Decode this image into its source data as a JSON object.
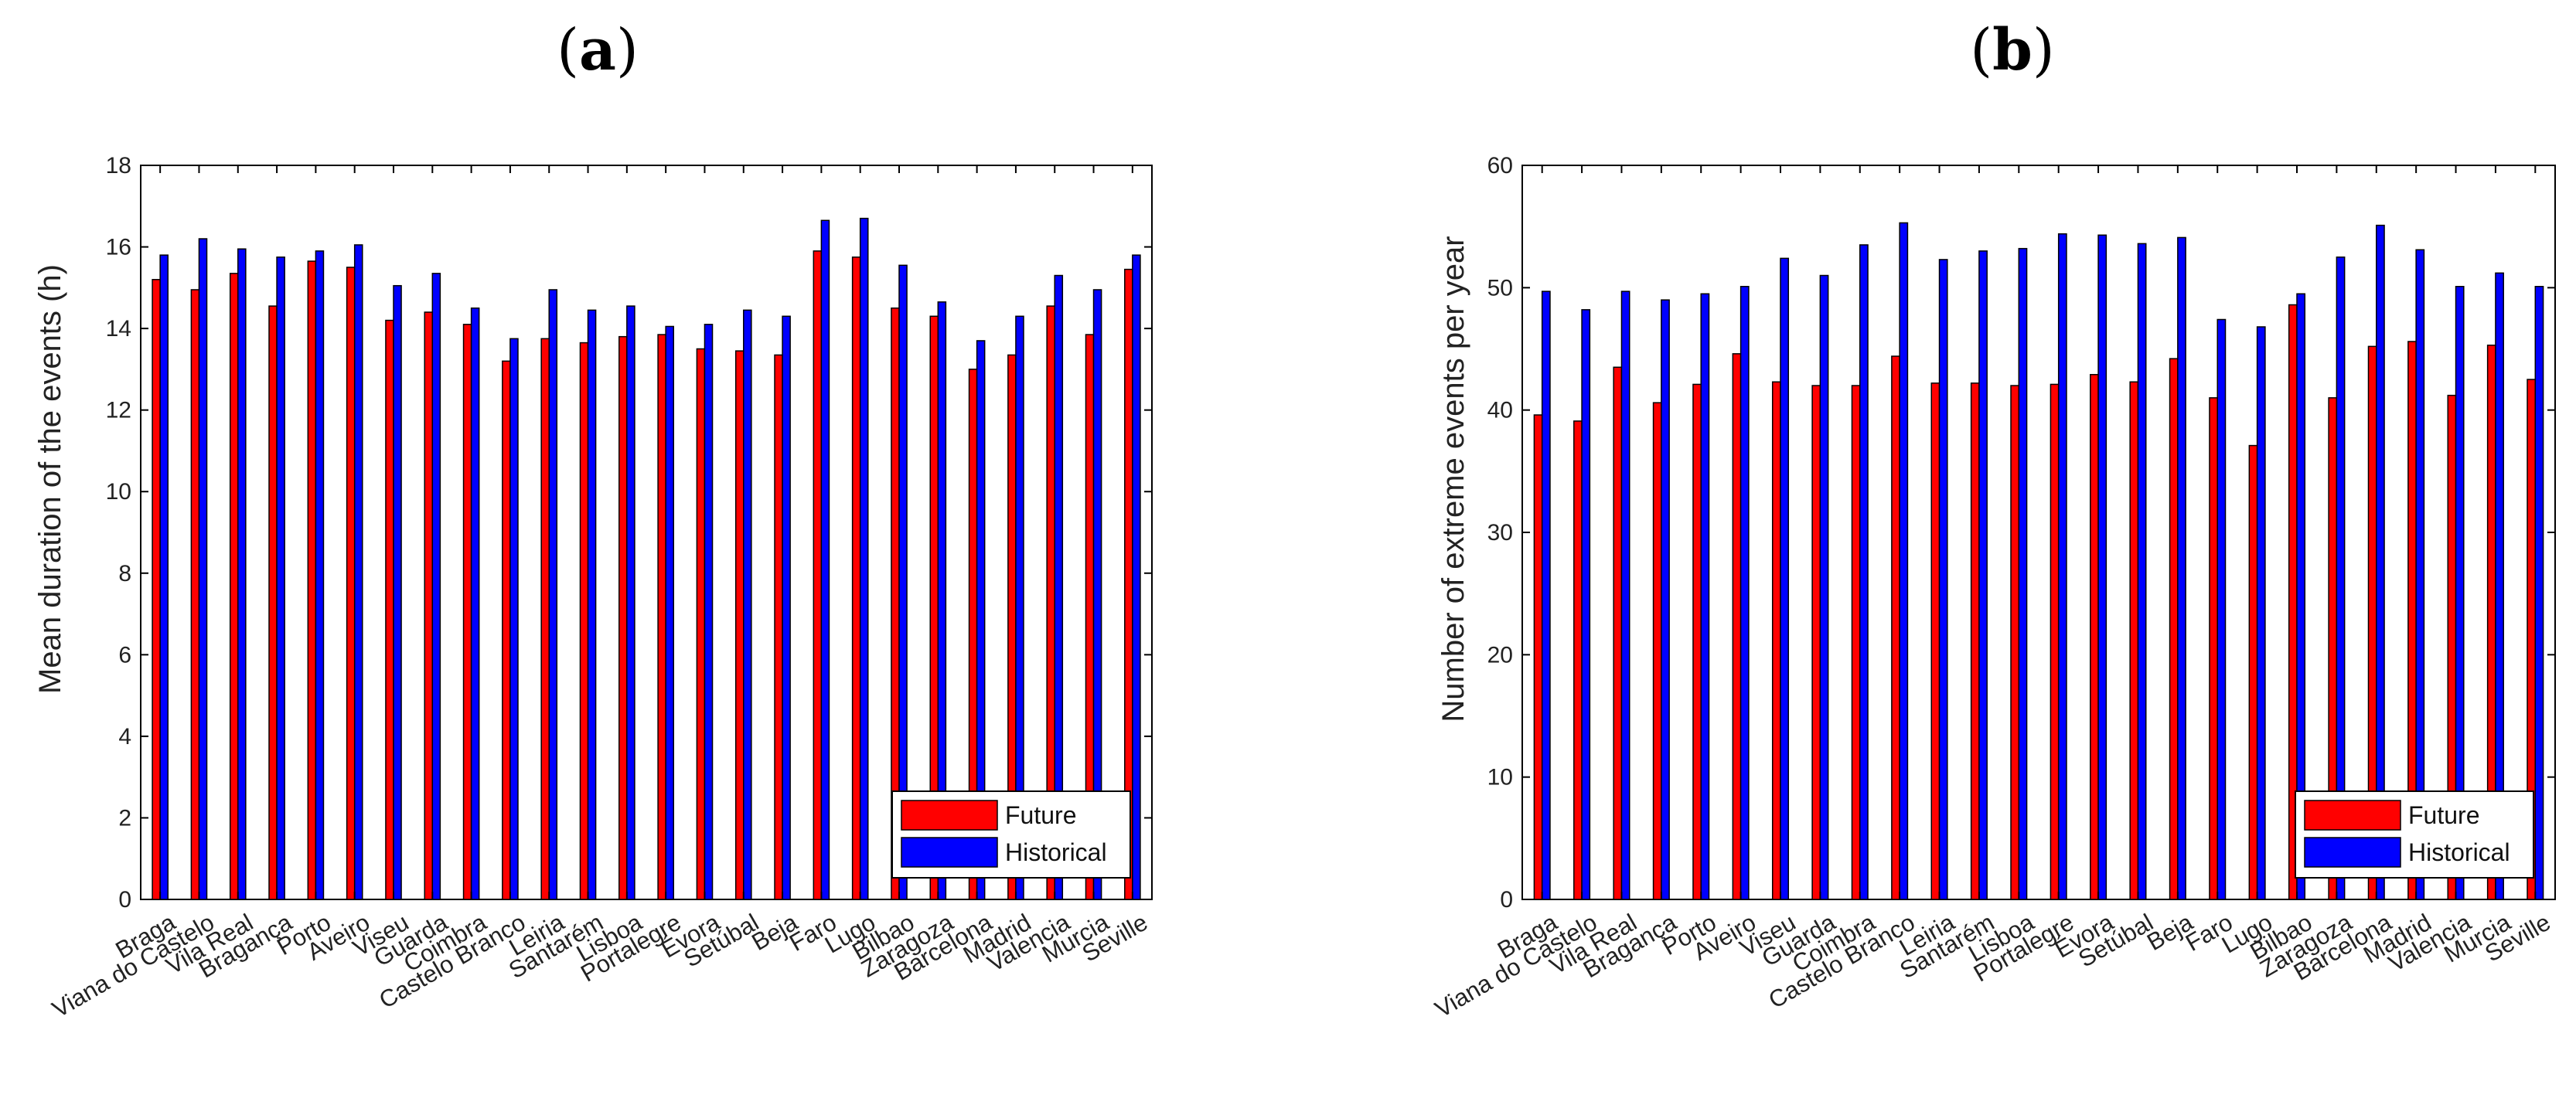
{
  "chart_data": [
    {
      "panel": "(a)",
      "type": "bar",
      "title": "(a)",
      "xlabel": "",
      "ylabel": "Mean duration of the events (h)",
      "ylim": [
        0,
        18
      ],
      "yticks": [
        0,
        2,
        4,
        6,
        8,
        10,
        12,
        14,
        16,
        18
      ],
      "categories": [
        "Braga",
        "Viana do Castelo",
        "Vila Real",
        "Bragança",
        "Porto",
        "Aveiro",
        "Viseu",
        "Guarda",
        "Coimbra",
        "Castelo Branco",
        "Leiria",
        "Santarém",
        "Lisboa",
        "Portalegre",
        "Évora",
        "Setúbal",
        "Beja",
        "Faro",
        "Lugo",
        "Bilbao",
        "Zaragoza",
        "Barcelona",
        "Madrid",
        "Valencia",
        "Murcia",
        "Seville"
      ],
      "series": [
        {
          "name": "Future",
          "color": "#ff0000",
          "values": [
            15.2,
            14.95,
            15.35,
            14.55,
            15.65,
            15.5,
            14.2,
            14.4,
            14.1,
            13.2,
            13.75,
            13.65,
            13.8,
            13.85,
            13.5,
            13.45,
            13.35,
            15.9,
            15.75,
            14.5,
            14.3,
            13.0,
            13.35,
            14.55,
            13.85,
            15.45
          ]
        },
        {
          "name": "Historical",
          "color": "#0000ff",
          "values": [
            15.8,
            16.2,
            15.95,
            15.75,
            15.9,
            16.05,
            15.05,
            15.35,
            14.5,
            13.75,
            14.95,
            14.45,
            14.55,
            14.05,
            14.1,
            14.45,
            14.3,
            16.65,
            16.7,
            15.55,
            14.65,
            13.7,
            14.3,
            15.3,
            14.95,
            15.8
          ]
        }
      ],
      "legend": [
        "Future",
        "Historical"
      ],
      "legend_position": "bottom-right"
    },
    {
      "panel": "(b)",
      "type": "bar",
      "title": "(b)",
      "xlabel": "",
      "ylabel": "Number of extreme events per year",
      "ylim": [
        0,
        60
      ],
      "yticks": [
        0,
        10,
        20,
        30,
        40,
        50,
        60
      ],
      "categories": [
        "Braga",
        "Viana do Castelo",
        "Vila Real",
        "Bragança",
        "Porto",
        "Aveiro",
        "Viseu",
        "Guarda",
        "Coimbra",
        "Castelo Branco",
        "Leiria",
        "Santarém",
        "Lisboa",
        "Portalegre",
        "Évora",
        "Setúbal",
        "Beja",
        "Faro",
        "Lugo",
        "Bilbao",
        "Zaragoza",
        "Barcelona",
        "Madrid",
        "Valencia",
        "Murcia",
        "Seville"
      ],
      "series": [
        {
          "name": "Future",
          "color": "#ff0000",
          "values": [
            39.6,
            39.1,
            43.5,
            40.6,
            42.1,
            44.6,
            42.3,
            42.0,
            42.0,
            44.4,
            42.2,
            42.2,
            42.0,
            42.1,
            42.9,
            42.3,
            44.2,
            41.0,
            37.1,
            48.6,
            41.0,
            45.2,
            45.6,
            41.2,
            45.3,
            42.5
          ]
        },
        {
          "name": "Historical",
          "color": "#0000ff",
          "values": [
            49.7,
            48.2,
            49.7,
            49.0,
            49.5,
            50.1,
            52.4,
            51.0,
            53.5,
            55.3,
            52.3,
            53.0,
            53.2,
            54.4,
            54.3,
            53.6,
            54.1,
            47.4,
            46.8,
            49.5,
            52.5,
            55.1,
            53.1,
            50.1,
            51.2,
            50.1
          ]
        }
      ],
      "legend": [
        "Future",
        "Historical"
      ],
      "legend_position": "bottom-right"
    }
  ]
}
